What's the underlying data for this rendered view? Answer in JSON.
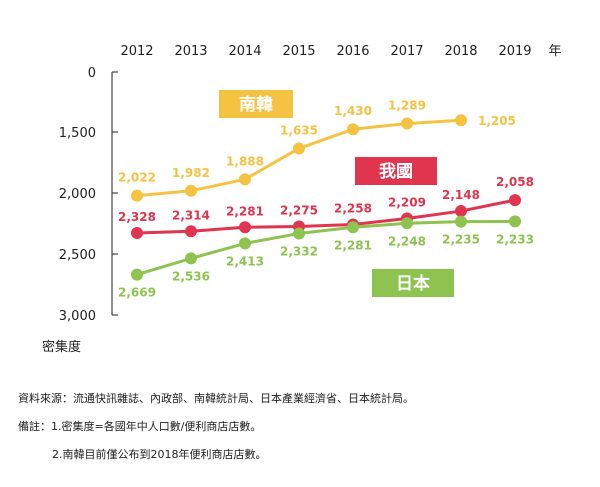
{
  "chart_data": {
    "type": "line",
    "x": [
      "2012",
      "2013",
      "2014",
      "2015",
      "2016",
      "2017",
      "2018",
      "2019"
    ],
    "x_unit": "年",
    "ylabel": "密集度",
    "ylim": [
      0,
      3000
    ],
    "y_axis_inverted": true,
    "yticks": [
      "0",
      "1,500",
      "2,000",
      "2,500",
      "3,000"
    ],
    "ytick_values": [
      0,
      1500,
      2000,
      2500,
      3000
    ],
    "grid": false,
    "series": [
      {
        "name": "南韓",
        "color": "#f5c242",
        "values": [
          2022,
          1982,
          1888,
          1635,
          1430,
          1289,
          1205,
          null
        ],
        "labels": [
          "2,022",
          "1,982",
          "1,888",
          "1,635",
          "1,430",
          "1,289",
          "1,205",
          ""
        ]
      },
      {
        "name": "我國",
        "color": "#e0344f",
        "values": [
          2328,
          2314,
          2281,
          2275,
          2258,
          2209,
          2148,
          2058
        ],
        "labels": [
          "2,328",
          "2,314",
          "2,281",
          "2,275",
          "2,258",
          "2,209",
          "2,148",
          "2,058"
        ]
      },
      {
        "name": "日本",
        "color": "#8ec34f",
        "values": [
          2669,
          2536,
          2413,
          2332,
          2281,
          2248,
          2235,
          2233
        ],
        "labels": [
          "2,669",
          "2,536",
          "2,413",
          "2,332",
          "2,281",
          "2,248",
          "2,235",
          "2,233"
        ]
      }
    ]
  },
  "notes": {
    "source": "資料來源：流通快訊雜誌、內政部、南韓統計局、日本產業經濟省、日本統計局。",
    "remark1": "備註：1.密集度=各國年中人口數/便利商店店數。",
    "remark2": "2.南韓目前僅公布到2018年便利商店店數。"
  }
}
